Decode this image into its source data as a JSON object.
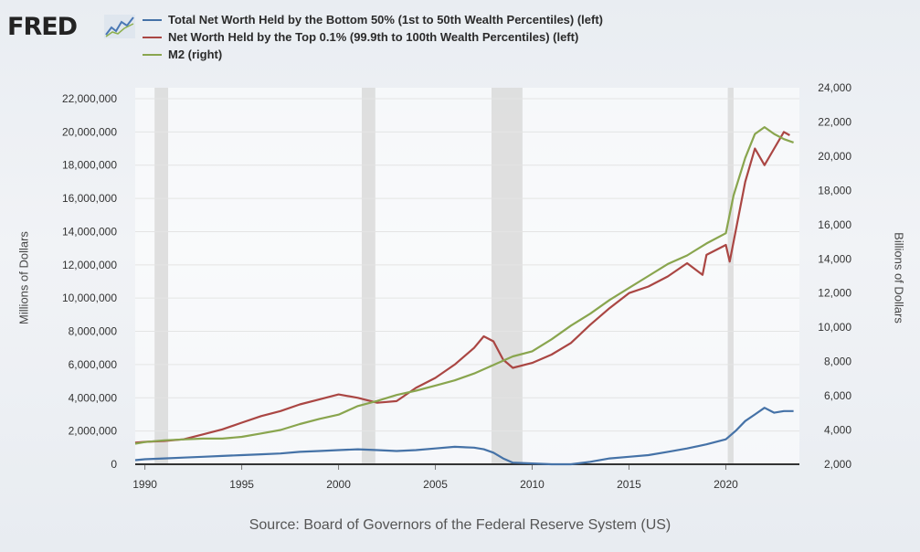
{
  "brand": {
    "logo_text": "FRED",
    "icon": "chart-line-icon"
  },
  "chart_data": {
    "type": "line",
    "title": "",
    "xlabel": "",
    "ylabel": "Millions of Dollars",
    "ylabel_right": "Billions of Dollars",
    "xlim": [
      1989.5,
      2023.8
    ],
    "ylim": [
      0,
      22000000
    ],
    "ylim_right": [
      2000,
      24000
    ],
    "x_ticks": [
      "1990",
      "1995",
      "2000",
      "2005",
      "2010",
      "2015",
      "2020"
    ],
    "y_ticks": [
      "0",
      "2,000,000",
      "4,000,000",
      "6,000,000",
      "8,000,000",
      "10,000,000",
      "12,000,000",
      "14,000,000",
      "16,000,000",
      "18,000,000",
      "20,000,000",
      "22,000,000"
    ],
    "y_ticks_right": [
      "2,000",
      "4,000",
      "6,000",
      "8,000",
      "10,000",
      "12,000",
      "14,000",
      "16,000",
      "18,000",
      "20,000",
      "22,000",
      "24,000"
    ],
    "grid": true,
    "legend_position": "top-left",
    "recessions": [
      [
        1990.5,
        1991.2
      ],
      [
        2001.2,
        2001.9
      ],
      [
        2007.9,
        2009.5
      ],
      [
        2020.1,
        2020.4
      ]
    ],
    "series": [
      {
        "name": "Total Net Worth Held by the Bottom 50% (1st to 50th Wealth Percentiles) (left)",
        "axis": "left",
        "color": "#4572a7",
        "x": [
          1989.5,
          1990,
          1991,
          1992,
          1993,
          1994,
          1995,
          1996,
          1997,
          1998,
          1999,
          2000,
          2001,
          2002,
          2003,
          2004,
          2005,
          2006,
          2007,
          2007.5,
          2008,
          2008.5,
          2009,
          2010,
          2011,
          2012,
          2013,
          2014,
          2015,
          2016,
          2017,
          2018,
          2019,
          2020,
          2020.5,
          2021,
          2021.5,
          2022,
          2022.5,
          2023,
          2023.5
        ],
        "y": [
          250000,
          300000,
          350000,
          400000,
          450000,
          500000,
          550000,
          600000,
          650000,
          750000,
          800000,
          850000,
          900000,
          850000,
          800000,
          850000,
          950000,
          1050000,
          1000000,
          900000,
          700000,
          350000,
          100000,
          50000,
          0,
          0,
          150000,
          350000,
          450000,
          550000,
          750000,
          950000,
          1200000,
          1500000,
          2000000,
          2600000,
          3000000,
          3400000,
          3100000,
          3200000,
          3200000
        ]
      },
      {
        "name": "Net Worth Held by the Top 0.1% (99.9th to 100th Wealth Percentiles) (left)",
        "axis": "left",
        "color": "#aa4643",
        "x": [
          1989.5,
          1990,
          1991,
          1992,
          1993,
          1994,
          1995,
          1996,
          1997,
          1998,
          1999,
          2000,
          2001,
          2002,
          2003,
          2004,
          2005,
          2006,
          2007,
          2007.5,
          2008,
          2008.5,
          2009,
          2010,
          2011,
          2012,
          2013,
          2014,
          2015,
          2016,
          2017,
          2018,
          2018.8,
          2019,
          2020,
          2020.2,
          2020.5,
          2021,
          2021.5,
          2022,
          2022.5,
          2023,
          2023.3
        ],
        "y": [
          1300000,
          1350000,
          1400000,
          1500000,
          1800000,
          2100000,
          2500000,
          2900000,
          3200000,
          3600000,
          3900000,
          4200000,
          4000000,
          3700000,
          3800000,
          4600000,
          5200000,
          6000000,
          7000000,
          7700000,
          7400000,
          6300000,
          5800000,
          6100000,
          6600000,
          7300000,
          8400000,
          9400000,
          10300000,
          10700000,
          11300000,
          12100000,
          11400000,
          12600000,
          13200000,
          12200000,
          14000000,
          17000000,
          19000000,
          18000000,
          19000000,
          20000000,
          19800000
        ]
      },
      {
        "name": "M2 (right)",
        "axis": "right",
        "color": "#89a54e",
        "x": [
          1989.5,
          1990,
          1991,
          1992,
          1993,
          1994,
          1995,
          1996,
          1997,
          1998,
          1999,
          2000,
          2001,
          2002,
          2003,
          2004,
          2005,
          2006,
          2007,
          2008,
          2009,
          2010,
          2011,
          2012,
          2013,
          2014,
          2015,
          2016,
          2017,
          2018,
          2019,
          2020,
          2020.4,
          2021,
          2021.5,
          2022,
          2022.5,
          2023,
          2023.5
        ],
        "y": [
          3200,
          3300,
          3400,
          3450,
          3500,
          3500,
          3600,
          3800,
          4000,
          4350,
          4650,
          4900,
          5400,
          5700,
          6050,
          6300,
          6600,
          6900,
          7300,
          7800,
          8300,
          8600,
          9300,
          10100,
          10800,
          11600,
          12300,
          13000,
          13700,
          14200,
          14900,
          15500,
          17700,
          19900,
          21300,
          21700,
          21300,
          21000,
          20800
        ]
      }
    ]
  },
  "source": "Source: Board of Governors of the Federal Reserve System (US)"
}
